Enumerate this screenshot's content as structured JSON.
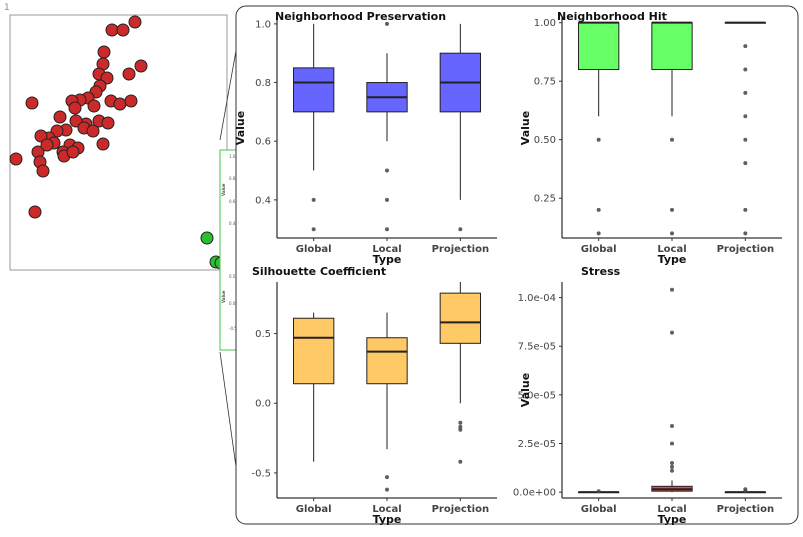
{
  "corner_label": "1",
  "scatter": {
    "point_color": "#cc2a2a",
    "highlight_color": "#2cbf2c"
  },
  "inset": {
    "upper_ticks": [
      "1.0",
      "0.8",
      "0.6",
      "0.4"
    ],
    "lower_ticks": [
      "0.5",
      "0.0",
      "-0.5"
    ],
    "axis_label": "Value"
  },
  "chart_data": [
    {
      "type": "box",
      "title": "Neighborhood Preservation",
      "xlabel": "Type",
      "ylabel": "Value",
      "ylim": [
        0.27,
        1.02
      ],
      "yticks": [
        1.0,
        0.8,
        0.6,
        0.4
      ],
      "ytick_labels": [
        "1.0",
        "0.8",
        "0.6",
        "0.4"
      ],
      "color": "#6666ff",
      "categories": [
        "Global",
        "Local",
        "Projection"
      ],
      "boxes": [
        {
          "q1": 0.7,
          "median": 0.8,
          "q3": 0.85,
          "whisker_low": 0.5,
          "whisker_high": 1.0,
          "outliers": [
            0.4,
            0.3
          ]
        },
        {
          "q1": 0.7,
          "median": 0.75,
          "q3": 0.8,
          "whisker_low": 0.6,
          "whisker_high": 0.9,
          "outliers": [
            1.0,
            0.5,
            0.4,
            0.3
          ]
        },
        {
          "q1": 0.7,
          "median": 0.8,
          "q3": 0.9,
          "whisker_low": 0.4,
          "whisker_high": 1.0,
          "outliers": [
            0.3
          ]
        }
      ]
    },
    {
      "type": "box",
      "title": "Neighborhood Hit",
      "xlabel": "Type",
      "ylabel": "Value",
      "ylim": [
        0.08,
        1.02
      ],
      "yticks": [
        1.0,
        0.75,
        0.5,
        0.25
      ],
      "ytick_labels": [
        "1.00",
        "0.75",
        "0.50",
        "0.25"
      ],
      "color": "#66ff66",
      "categories": [
        "Global",
        "Local",
        "Projection"
      ],
      "boxes": [
        {
          "q1": 0.8,
          "median": 1.0,
          "q3": 1.0,
          "whisker_low": 0.6,
          "whisker_high": 1.0,
          "outliers": [
            0.5,
            0.2,
            0.1
          ]
        },
        {
          "q1": 0.8,
          "median": 1.0,
          "q3": 1.0,
          "whisker_low": 0.6,
          "whisker_high": 1.0,
          "outliers": [
            0.5,
            0.2,
            0.1
          ]
        },
        {
          "q1": 1.0,
          "median": 1.0,
          "q3": 1.0,
          "whisker_low": 1.0,
          "whisker_high": 1.0,
          "outliers": [
            0.9,
            0.8,
            0.7,
            0.6,
            0.5,
            0.4,
            0.2,
            0.1
          ]
        }
      ]
    },
    {
      "type": "box",
      "title": "Silhouette Coefficient",
      "xlabel": "Type",
      "ylabel": "",
      "ylim": [
        -0.68,
        0.87
      ],
      "yticks": [
        0.5,
        0.0,
        -0.5
      ],
      "ytick_labels": [
        "0.5",
        "0.0",
        "-0.5"
      ],
      "color": "#ffc966",
      "categories": [
        "Global",
        "Local",
        "Projection"
      ],
      "boxes": [
        {
          "q1": 0.14,
          "median": 0.47,
          "q3": 0.61,
          "whisker_low": -0.42,
          "whisker_high": 0.65,
          "outliers": []
        },
        {
          "q1": 0.14,
          "median": 0.37,
          "q3": 0.47,
          "whisker_low": -0.33,
          "whisker_high": 0.65,
          "outliers": [
            -0.53,
            -0.62
          ]
        },
        {
          "q1": 0.43,
          "median": 0.58,
          "q3": 0.79,
          "whisker_low": 0.0,
          "whisker_high": 0.87,
          "outliers": [
            -0.14,
            -0.17,
            -0.19,
            -0.42
          ]
        }
      ]
    },
    {
      "type": "box",
      "title": "Stress",
      "xlabel": "Type",
      "ylabel": "Value",
      "ylim": [
        -3e-06,
        0.000108
      ],
      "yticks": [
        0.0001,
        7.5e-05,
        5e-05,
        2.5e-05,
        0
      ],
      "ytick_labels": [
        "1.0e-04",
        "7.5e-05",
        "5.0e-05",
        "2.5e-05",
        "0.0e+00"
      ],
      "color": "#e05050",
      "categories": [
        "Global",
        "Local",
        "Projection"
      ],
      "boxes": [
        {
          "q1": 0.0,
          "median": 0.0,
          "q3": 0.0,
          "whisker_low": 0.0,
          "whisker_high": 0.0,
          "outliers": [
            5e-07
          ]
        },
        {
          "q1": 5e-07,
          "median": 1.5e-06,
          "q3": 3e-06,
          "whisker_low": 0.0,
          "whisker_high": 6e-06,
          "outliers": [
            0.000104,
            8.2e-05,
            3.4e-05,
            2.5e-05,
            1.5e-05,
            1.3e-05,
            1.1e-05
          ]
        },
        {
          "q1": 0.0,
          "median": 0.0,
          "q3": 0.0,
          "whisker_low": 0.0,
          "whisker_high": 0.0,
          "outliers": [
            1.5e-06,
            5e-07
          ]
        }
      ]
    }
  ]
}
